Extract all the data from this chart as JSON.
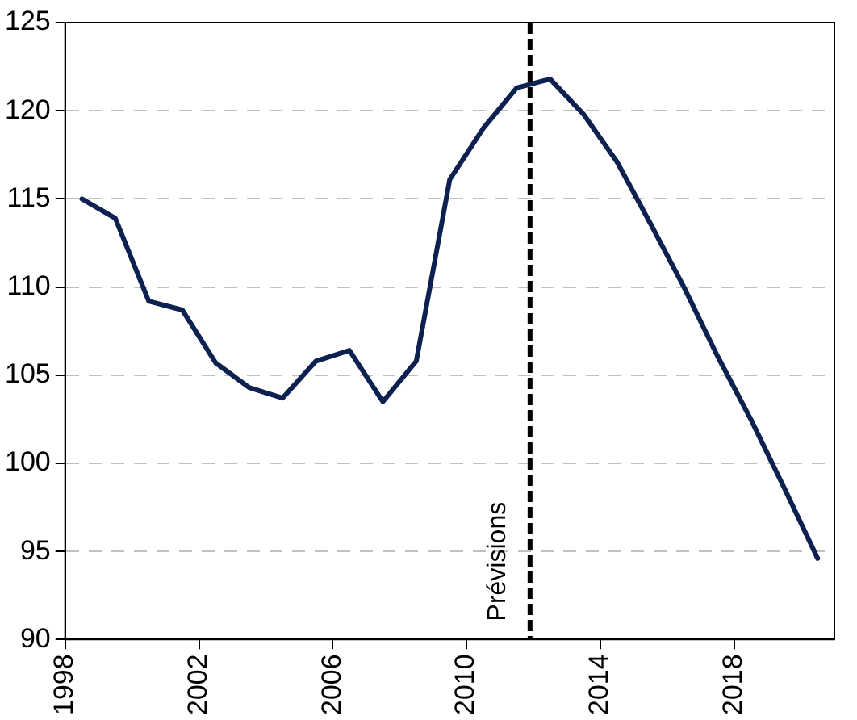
{
  "chart_data": {
    "type": "line",
    "x": [
      1998.5,
      1999.5,
      2000.5,
      2001.5,
      2002.5,
      2003.5,
      2004.5,
      2005.5,
      2006.5,
      2007.5,
      2008.5,
      2009.5,
      2010.5,
      2011.5,
      2012.5,
      2013.5,
      2014.5,
      2015.5,
      2016.5,
      2017.5,
      2018.5,
      2019.5,
      2020.5
    ],
    "series": [
      {
        "color": "#0d2151",
        "values": [
          115.0,
          113.9,
          109.2,
          108.7,
          105.7,
          104.3,
          103.7,
          105.8,
          106.4,
          103.5,
          105.8,
          116.1,
          119.0,
          121.3,
          121.8,
          119.8,
          117.1,
          113.6,
          110.0,
          106.1,
          102.5,
          98.6,
          94.6
        ]
      }
    ],
    "xlim": [
      1998,
      2021
    ],
    "xticks": [
      1998,
      2002,
      2006,
      2010,
      2014,
      2018
    ],
    "ylim": [
      90,
      125
    ],
    "yticks": [
      90,
      95,
      100,
      105,
      110,
      115,
      120,
      125
    ],
    "grid": "y",
    "legend": false,
    "marker": "none",
    "line_style": "solid",
    "ref_lines": [
      {
        "axis": "x",
        "value": 2011.9,
        "label": "Prévisions",
        "color": "#000000",
        "line_style": "dashed"
      }
    ]
  }
}
